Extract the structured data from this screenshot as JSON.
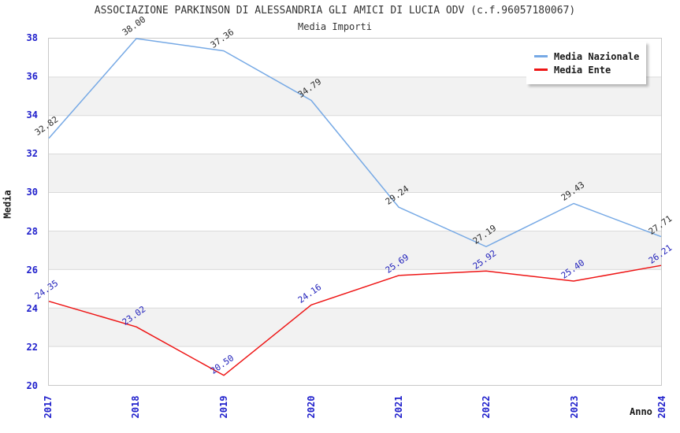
{
  "header": {
    "title": "ASSOCIAZIONE PARKINSON DI ALESSANDRIA GLI AMICI DI LUCIA ODV (c.f.96057180067)",
    "subtitle": "Media Importi"
  },
  "axes": {
    "y_label": "Media",
    "x_label": "Anno",
    "y_ticks": [
      20,
      22,
      24,
      26,
      28,
      30,
      32,
      34,
      36,
      38
    ],
    "x_ticks": [
      "2017",
      "2018",
      "2019",
      "2020",
      "2021",
      "2022",
      "2023",
      "2024"
    ],
    "tick_color": "#2020cc"
  },
  "colors": {
    "band_fill": "#f2f2f2",
    "gridline": "#dadada",
    "plot_border": "#c8c8c8",
    "nazionale_line": "#76a9e5",
    "ente_line": "#ee1515",
    "nazionale_value_label": "#2b2b2b",
    "ente_value_label": "#2222bb"
  },
  "chart_data": {
    "type": "line",
    "title": "ASSOCIAZIONE PARKINSON DI ALESSANDRIA GLI AMICI DI LUCIA ODV (c.f.96057180067)",
    "subtitle": "Media Importi",
    "xlabel": "Anno",
    "ylabel": "Media",
    "x": [
      2017,
      2018,
      2019,
      2020,
      2021,
      2022,
      2023,
      2024
    ],
    "series": [
      {
        "name": "Media Nazionale",
        "color": "#76a9e5",
        "label_color": "#2b2b2b",
        "values": [
          32.82,
          38.0,
          37.36,
          34.79,
          29.24,
          27.19,
          29.43,
          27.71
        ]
      },
      {
        "name": "Media Ente",
        "color": "#ee1515",
        "label_color": "#2222bb",
        "values": [
          24.35,
          23.02,
          20.5,
          24.16,
          25.69,
          25.92,
          25.4,
          26.21
        ]
      }
    ],
    "ylim": [
      20,
      38
    ],
    "y_tick_step": 2,
    "grid": true,
    "alternating_bands": true,
    "value_labels_rotation_deg": -35,
    "value_label_decimals": 2,
    "legend_position": "top-right"
  }
}
